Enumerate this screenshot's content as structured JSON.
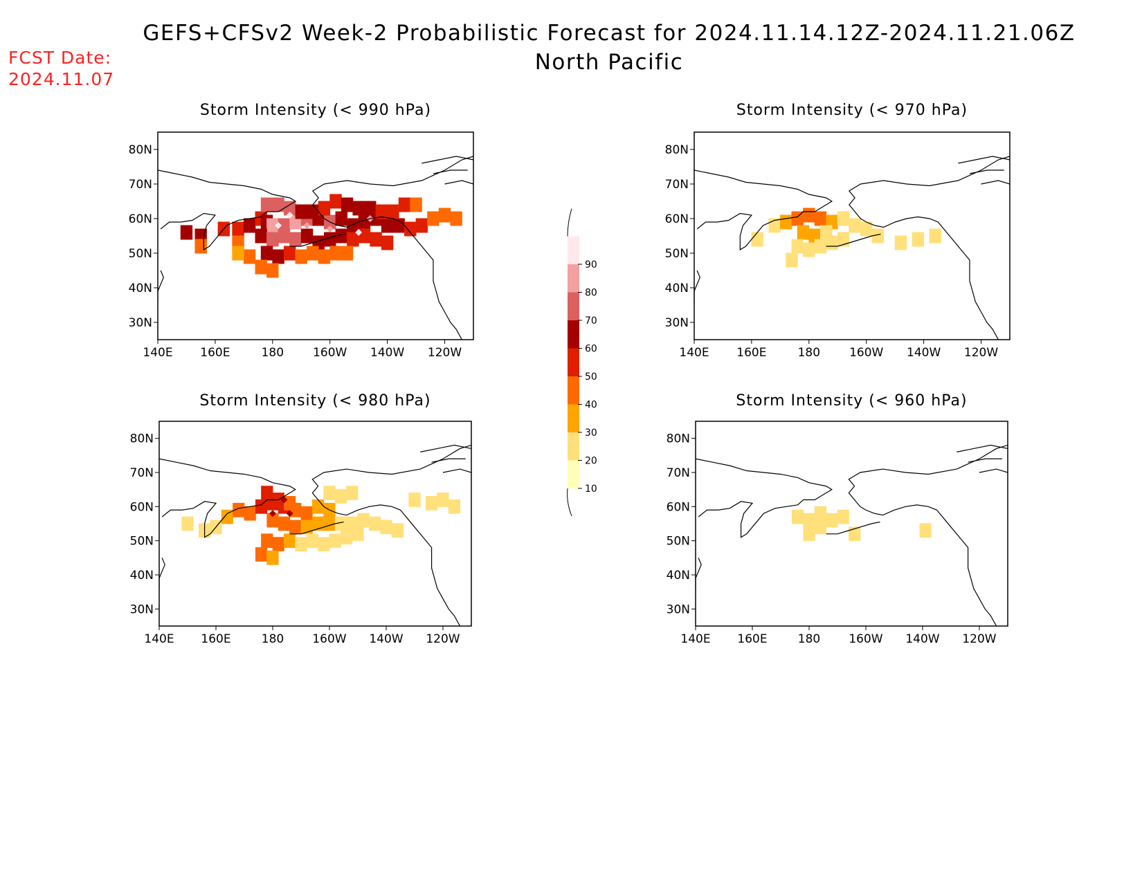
{
  "header": {
    "title_line1": "GEFS+CFSv2 Week-2 Probabilistic Forecast for 2024.11.14.12Z-2024.11.21.06Z",
    "title_line2": "North Pacific",
    "fcst_label": "FCST Date:",
    "fcst_date": "2024.11.07"
  },
  "axes": {
    "x_ticks": [
      "140E",
      "160E",
      "180",
      "160W",
      "140W",
      "120W"
    ],
    "x_values": [
      140,
      160,
      180,
      200,
      220,
      240
    ],
    "y_ticks": [
      "30N",
      "40N",
      "50N",
      "60N",
      "70N",
      "80N"
    ],
    "y_values": [
      30,
      40,
      50,
      60,
      70,
      80
    ],
    "lon_range": [
      140,
      250
    ],
    "lat_range": [
      25,
      85
    ]
  },
  "colorbar": {
    "levels": [
      "10",
      "20",
      "30",
      "40",
      "50",
      "60",
      "70",
      "80",
      "90"
    ],
    "colors": [
      "#ffffb8",
      "#ffe07a",
      "#ffa500",
      "#ff6a00",
      "#e01e00",
      "#a50000",
      "#dd6060",
      "#f2a0a0",
      "#ffe8ec"
    ]
  },
  "panels": [
    {
      "title": "Storm Intensity (< 990 hPa)",
      "cells": [
        [
          150,
          56,
          5
        ],
        [
          155,
          55,
          5
        ],
        [
          155,
          52,
          3
        ],
        [
          163,
          57,
          4
        ],
        [
          168,
          57,
          4
        ],
        [
          172,
          58,
          5
        ],
        [
          168,
          53,
          3
        ],
        [
          176,
          60,
          4
        ],
        [
          178,
          59,
          5
        ],
        [
          180,
          58,
          7
        ],
        [
          184,
          58,
          6
        ],
        [
          188,
          59,
          7
        ],
        [
          192,
          60,
          6
        ],
        [
          196,
          60,
          5
        ],
        [
          200,
          59,
          6
        ],
        [
          204,
          60,
          5
        ],
        [
          208,
          58,
          5
        ],
        [
          212,
          59,
          5
        ],
        [
          216,
          60,
          5
        ],
        [
          220,
          58,
          5
        ],
        [
          224,
          58,
          5
        ],
        [
          228,
          57,
          4
        ],
        [
          232,
          58,
          4
        ],
        [
          236,
          60,
          3
        ],
        [
          240,
          61,
          3
        ],
        [
          244,
          60,
          3
        ],
        [
          178,
          64,
          6
        ],
        [
          182,
          64,
          6
        ],
        [
          186,
          63,
          6
        ],
        [
          190,
          62,
          5
        ],
        [
          194,
          62,
          5
        ],
        [
          198,
          63,
          4
        ],
        [
          202,
          65,
          4
        ],
        [
          206,
          64,
          5
        ],
        [
          210,
          63,
          5
        ],
        [
          214,
          63,
          5
        ],
        [
          218,
          62,
          4
        ],
        [
          222,
          62,
          4
        ],
        [
          226,
          64,
          4
        ],
        [
          230,
          64,
          3
        ],
        [
          176,
          55,
          5
        ],
        [
          180,
          54,
          6
        ],
        [
          184,
          55,
          6
        ],
        [
          188,
          54,
          6
        ],
        [
          192,
          55,
          5
        ],
        [
          196,
          53,
          5
        ],
        [
          200,
          54,
          5
        ],
        [
          204,
          55,
          5
        ],
        [
          208,
          54,
          4
        ],
        [
          212,
          55,
          4
        ],
        [
          216,
          54,
          4
        ],
        [
          220,
          53,
          4
        ],
        [
          178,
          50,
          5
        ],
        [
          182,
          49,
          5
        ],
        [
          186,
          50,
          4
        ],
        [
          190,
          49,
          3
        ],
        [
          194,
          50,
          3
        ],
        [
          198,
          49,
          3
        ],
        [
          202,
          50,
          3
        ],
        [
          206,
          50,
          3
        ],
        [
          176,
          46,
          3
        ],
        [
          180,
          45,
          3
        ],
        [
          172,
          49,
          3
        ],
        [
          168,
          50,
          2
        ]
      ],
      "hotspots": [
        [
          182,
          58,
          8
        ],
        [
          186,
          61,
          8
        ],
        [
          192,
          58,
          7
        ],
        [
          200,
          57,
          7
        ],
        [
          210,
          56,
          8
        ],
        [
          214,
          60,
          7
        ]
      ]
    },
    {
      "title": "Storm Intensity (< 970 hPa)",
      "cells": [
        [
          162,
          54,
          1
        ],
        [
          168,
          58,
          1
        ],
        [
          172,
          59,
          2
        ],
        [
          176,
          60,
          3
        ],
        [
          180,
          61,
          3
        ],
        [
          184,
          60,
          3
        ],
        [
          188,
          59,
          2
        ],
        [
          192,
          60,
          1
        ],
        [
          178,
          56,
          2
        ],
        [
          182,
          55,
          2
        ],
        [
          186,
          56,
          1
        ],
        [
          176,
          52,
          1
        ],
        [
          180,
          51,
          1
        ],
        [
          184,
          52,
          1
        ],
        [
          188,
          53,
          1
        ],
        [
          192,
          54,
          1
        ],
        [
          196,
          58,
          1
        ],
        [
          200,
          57,
          1
        ],
        [
          204,
          55,
          1
        ],
        [
          212,
          53,
          1
        ],
        [
          218,
          54,
          1
        ],
        [
          224,
          55,
          1
        ],
        [
          174,
          48,
          1
        ]
      ],
      "hotspots": []
    },
    {
      "title": "Storm Intensity (< 980 hPa)",
      "cells": [
        [
          150,
          55,
          1
        ],
        [
          156,
          53,
          1
        ],
        [
          160,
          54,
          1
        ],
        [
          164,
          57,
          2
        ],
        [
          168,
          59,
          3
        ],
        [
          172,
          58,
          3
        ],
        [
          176,
          60,
          4
        ],
        [
          180,
          61,
          4
        ],
        [
          184,
          60,
          4
        ],
        [
          188,
          59,
          3
        ],
        [
          192,
          58,
          3
        ],
        [
          196,
          60,
          2
        ],
        [
          200,
          59,
          2
        ],
        [
          178,
          64,
          4
        ],
        [
          182,
          62,
          4
        ],
        [
          186,
          61,
          3
        ],
        [
          180,
          56,
          3
        ],
        [
          184,
          55,
          3
        ],
        [
          188,
          54,
          3
        ],
        [
          192,
          54,
          2
        ],
        [
          196,
          55,
          2
        ],
        [
          200,
          55,
          2
        ],
        [
          204,
          55,
          1
        ],
        [
          208,
          55,
          1
        ],
        [
          212,
          56,
          1
        ],
        [
          216,
          55,
          1
        ],
        [
          220,
          54,
          1
        ],
        [
          224,
          53,
          1
        ],
        [
          178,
          50,
          3
        ],
        [
          182,
          49,
          3
        ],
        [
          176,
          46,
          3
        ],
        [
          180,
          45,
          2
        ],
        [
          186,
          50,
          2
        ],
        [
          190,
          49,
          1
        ],
        [
          194,
          50,
          1
        ],
        [
          198,
          49,
          1
        ],
        [
          202,
          50,
          1
        ],
        [
          206,
          51,
          1
        ],
        [
          210,
          52,
          1
        ],
        [
          200,
          64,
          1
        ],
        [
          204,
          63,
          1
        ],
        [
          208,
          64,
          1
        ],
        [
          230,
          62,
          1
        ],
        [
          236,
          61,
          1
        ],
        [
          240,
          62,
          1
        ],
        [
          244,
          60,
          1
        ]
      ],
      "hotspots": [
        [
          180,
          58,
          5
        ],
        [
          186,
          58,
          5
        ],
        [
          184,
          62,
          5
        ]
      ]
    },
    {
      "title": "Storm Intensity (< 960 hPa)",
      "cells": [
        [
          176,
          57,
          1
        ],
        [
          180,
          56,
          1
        ],
        [
          184,
          58,
          1
        ],
        [
          180,
          52,
          1
        ],
        [
          184,
          54,
          1
        ],
        [
          188,
          56,
          1
        ],
        [
          192,
          57,
          1
        ],
        [
          196,
          52,
          1
        ],
        [
          221,
          53,
          1
        ]
      ],
      "hotspots": []
    }
  ]
}
